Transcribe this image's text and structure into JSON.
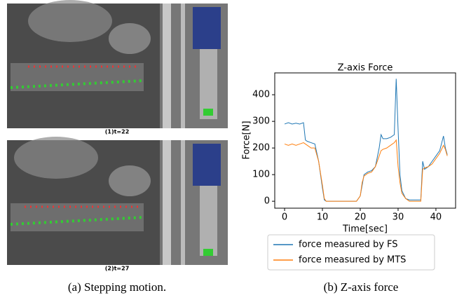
{
  "figure": {
    "left_panels": [
      "(1)t=22",
      "(2)t=27"
    ],
    "captions": [
      "(a) Stepping motion.",
      "(b) Z-axis force"
    ]
  },
  "chart_data": {
    "type": "line",
    "title": "Z-axis Force",
    "x_label": "Time[sec]",
    "y_label": "Force[N]",
    "x": [
      0,
      1,
      2,
      3,
      4,
      5,
      5.5,
      6,
      7,
      8,
      9,
      10,
      10.5,
      11,
      13,
      15,
      17,
      19,
      20,
      20.5,
      21,
      22,
      23,
      24,
      25,
      25.5,
      26,
      27,
      28,
      29,
      29.5,
      30,
      30.5,
      31,
      32,
      33,
      35,
      36,
      36.5,
      37,
      38,
      39,
      40,
      41,
      42,
      42.5,
      43
    ],
    "series": [
      {
        "name": "force measured by FS",
        "color": "#1f77b4",
        "values": [
          290,
          295,
          290,
          293,
          290,
          295,
          230,
          225,
          220,
          215,
          150,
          50,
          5,
          0,
          0,
          0,
          0,
          0,
          20,
          60,
          100,
          110,
          115,
          130,
          200,
          250,
          235,
          235,
          240,
          250,
          460,
          270,
          100,
          40,
          10,
          5,
          5,
          5,
          150,
          120,
          130,
          150,
          170,
          190,
          245,
          200,
          175
        ]
      },
      {
        "name": "force measured by MTS",
        "color": "#ff7f0e",
        "values": [
          215,
          210,
          215,
          210,
          215,
          220,
          215,
          210,
          200,
          200,
          150,
          60,
          10,
          0,
          0,
          0,
          0,
          0,
          20,
          70,
          95,
          105,
          110,
          130,
          170,
          190,
          195,
          200,
          210,
          220,
          230,
          130,
          70,
          30,
          10,
          0,
          0,
          0,
          120,
          125,
          130,
          140,
          160,
          180,
          210,
          195,
          170
        ]
      }
    ],
    "xlim": [
      -2.6,
      45.2
    ],
    "ylim": [
      -26,
      482
    ],
    "xticks": [
      0,
      10,
      20,
      30,
      40
    ],
    "yticks": [
      0,
      100,
      200,
      300,
      400
    ],
    "grid": false,
    "legend": "below"
  }
}
